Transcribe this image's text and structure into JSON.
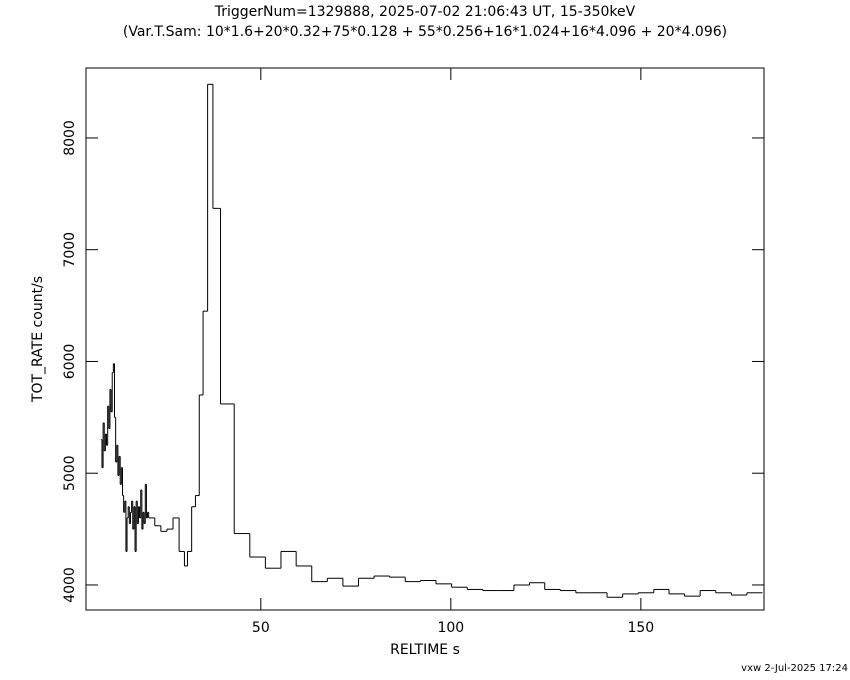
{
  "chart_data": {
    "type": "step",
    "title": "TriggerNum=1329888, 2025-07-02 21:06:43 UT, 15-350keV",
    "subtitle": "(Var.T.Sam: 10*1.6+20*0.32+75*0.128  +  55*0.256+16*1.024+16*4.096  +  20*4.096)",
    "x_label": "RELTIME  s",
    "y_label": "TOT_RATE  count/s",
    "footer": "vxw  2-Jul-2025 17:24",
    "color": "#000000",
    "xlim": [
      4,
      182.4
    ],
    "ylim": [
      3776,
      8626
    ],
    "xticks": [
      50,
      100,
      150
    ],
    "yticks": [
      4000,
      5000,
      6000,
      7000,
      8000
    ],
    "series": [
      {
        "name": "TOT_RATE",
        "x": [
          7.9,
          8.2,
          8.5,
          8.8,
          9.1,
          9.4,
          9.7,
          10.0,
          10.3,
          10.6,
          10.9,
          11.2,
          11.5,
          11.8,
          12.1,
          12.4,
          12.7,
          13.0,
          13.3,
          13.6,
          13.9,
          14.2,
          14.5,
          14.8,
          15.1,
          15.4,
          15.7,
          16.0,
          16.3,
          16.6,
          16.9,
          17.2,
          17.5,
          17.8,
          18.1,
          18.4,
          18.7,
          19.0,
          19.3,
          19.6,
          19.9,
          20.2,
          20.5,
          22.1,
          23.7,
          25.3,
          26.9,
          28.5,
          29.9,
          30.7,
          31.8,
          32.8,
          33.8,
          34.8,
          36.0,
          37.4,
          39.4,
          43.0,
          47.1,
          51.2,
          55.3,
          59.3,
          63.4,
          67.5,
          71.6,
          75.7,
          79.8,
          83.9,
          88.0,
          92.0,
          96.1,
          100.2,
          104.3,
          108.4,
          112.5,
          116.6,
          120.7,
          124.7,
          128.8,
          132.9,
          137.0,
          141.1,
          145.2,
          149.3,
          153.4,
          157.4,
          161.5,
          165.6,
          169.7,
          173.8,
          177.9
        ],
        "values": [
          5300,
          5050,
          5450,
          5200,
          5350,
          5250,
          5600,
          5400,
          5750,
          5550,
          5900,
          5980,
          5500,
          5100,
          5250,
          4980,
          5150,
          4900,
          5050,
          4800,
          4650,
          4750,
          4300,
          4600,
          4700,
          4550,
          4650,
          4750,
          4500,
          4700,
          4300,
          4750,
          4550,
          4700,
          4600,
          4850,
          4500,
          4650,
          4550,
          4900,
          4600,
          4650,
          4600,
          4530,
          4480,
          4500,
          4600,
          4300,
          4170,
          4300,
          4700,
          4800,
          5700,
          6450,
          8480,
          7370,
          5620,
          4460,
          4250,
          4150,
          4300,
          4170,
          4030,
          4060,
          3990,
          4060,
          4080,
          4070,
          4030,
          4040,
          4010,
          3980,
          3960,
          3950,
          3950,
          4000,
          4020,
          3960,
          3950,
          3930,
          3930,
          3890,
          3920,
          3930,
          3960,
          3920,
          3900,
          3950,
          3930,
          3910,
          3930
        ]
      }
    ]
  }
}
